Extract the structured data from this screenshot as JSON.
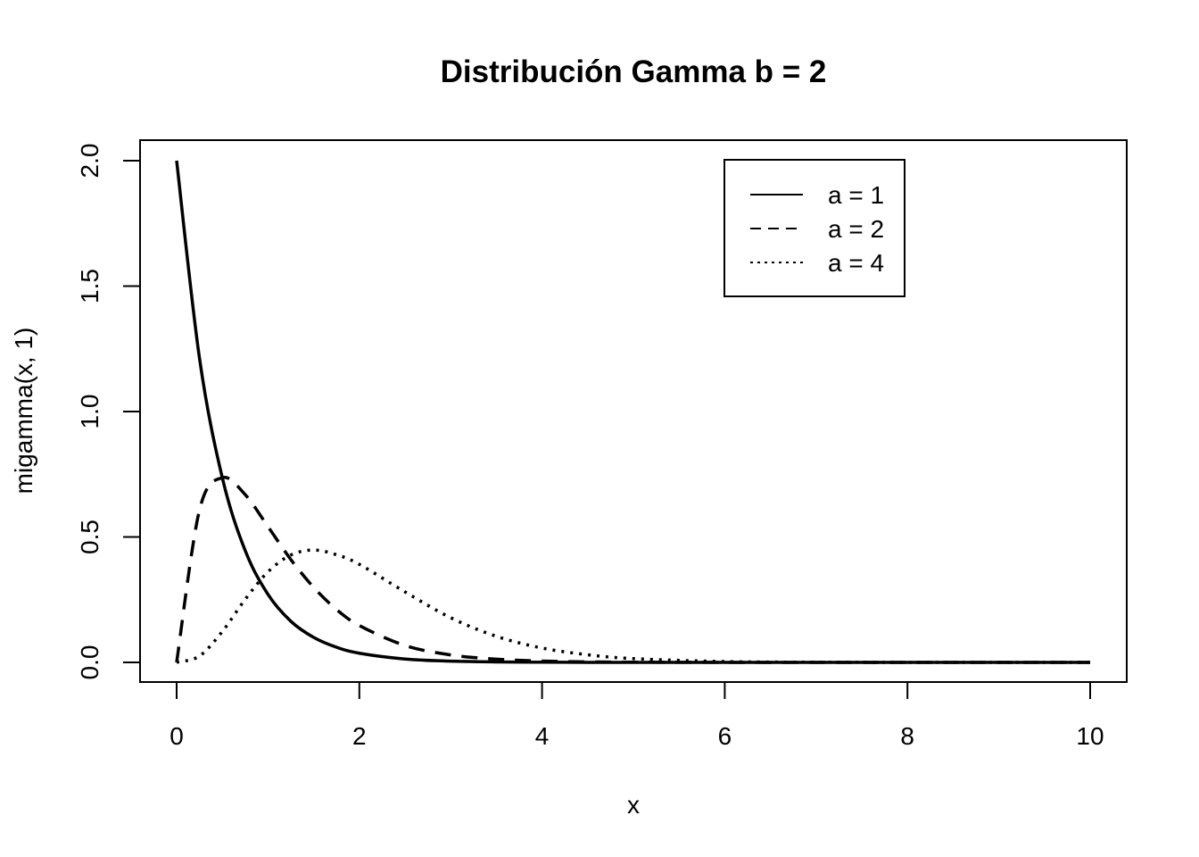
{
  "chart_data": {
    "type": "line",
    "title": "Distribución Gamma b = 2",
    "xlabel": "x",
    "ylabel": "migamma(x, 1)",
    "xlim": [
      0,
      10
    ],
    "ylim": [
      0,
      2.0
    ],
    "x_ticks": [
      "0",
      "2",
      "4",
      "6",
      "8",
      "10"
    ],
    "y_ticks": [
      "0.0",
      "0.5",
      "1.0",
      "1.5",
      "2.0"
    ],
    "grid": false,
    "legend_position": "top-right",
    "x": [
      0,
      0.25,
      0.5,
      0.75,
      1,
      1.25,
      1.5,
      1.75,
      2,
      2.5,
      3,
      3.5,
      4,
      4.5,
      5,
      6,
      7,
      8,
      9,
      10
    ],
    "series": [
      {
        "name": "a = 1",
        "line_style": "solid",
        "color": "#000000",
        "values": [
          2.0,
          1.213,
          0.736,
          0.446,
          0.271,
          0.164,
          0.0996,
          0.0604,
          0.0366,
          0.0135,
          0.005,
          0.0018,
          0.0007,
          0.0002,
          0.0001,
          0,
          0,
          0,
          0,
          0
        ]
      },
      {
        "name": "a = 2",
        "line_style": "dashed",
        "color": "#000000",
        "values": [
          0,
          0.607,
          0.736,
          0.669,
          0.541,
          0.41,
          0.299,
          0.211,
          0.147,
          0.0674,
          0.0297,
          0.0128,
          0.0054,
          0.0022,
          0.0009,
          0.0001,
          0,
          0,
          0,
          0
        ]
      },
      {
        "name": "a = 4",
        "line_style": "dotted",
        "color": "#000000",
        "values": [
          0,
          0.0253,
          0.123,
          0.251,
          0.361,
          0.428,
          0.448,
          0.429,
          0.391,
          0.281,
          0.178,
          0.104,
          0.0573,
          0.0304,
          0.0151,
          0.0033,
          0.0007,
          0.0001,
          0,
          0
        ]
      }
    ]
  }
}
